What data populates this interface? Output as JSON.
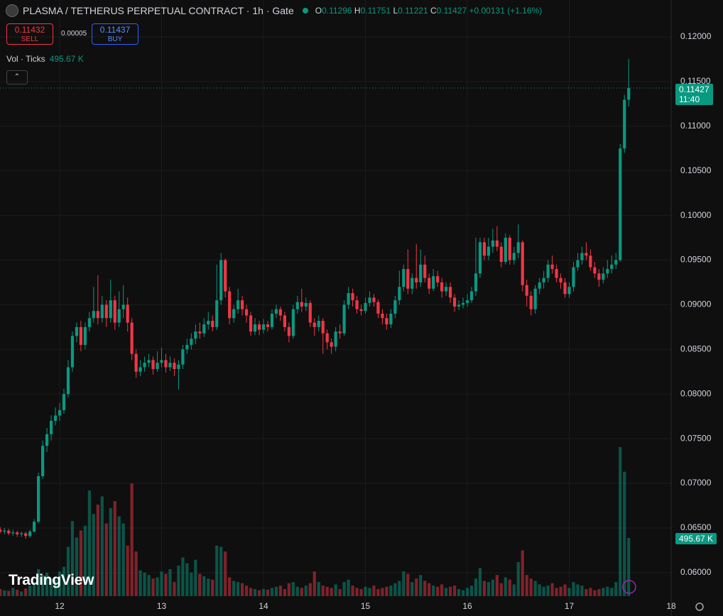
{
  "header": {
    "symbol": "PLASMA / TETHERUS PERPETUAL CONTRACT · 1h · Gate",
    "ohlc": [
      {
        "key": "O",
        "value": "0.11296"
      },
      {
        "key": "H",
        "value": "0.11751"
      },
      {
        "key": "L",
        "value": "0.11221"
      },
      {
        "key": "C",
        "value": "0.11427"
      }
    ],
    "change": "+0.00131 (+1.16%)"
  },
  "trade": {
    "sell": {
      "price": "0.11432",
      "label": "SELL"
    },
    "spread": "0.00005",
    "buy": {
      "price": "0.11437",
      "label": "BUY"
    }
  },
  "volume_indicator": {
    "name": "Vol · Ticks",
    "value": "495.67 K"
  },
  "badges": {
    "price": "0.11427",
    "countdown": "11:40",
    "volume": "495.67 K"
  },
  "logo": "TradingView",
  "chart_data": {
    "type": "candlestick",
    "up_color": "#089981",
    "down_color": "#f23645",
    "grid": true,
    "last_price": 0.11427,
    "xlim": [
      273.95,
      432
    ],
    "xticks": [
      {
        "value": 288,
        "label": "12"
      },
      {
        "value": 312,
        "label": "13"
      },
      {
        "value": 336,
        "label": "14"
      },
      {
        "value": 360,
        "label": "15"
      },
      {
        "value": 384,
        "label": "16"
      },
      {
        "value": 408,
        "label": "17"
      },
      {
        "value": 432,
        "label": "18"
      }
    ],
    "ylim": [
      0.05673,
      0.12413
    ],
    "yticks": [
      {
        "value": 0.12,
        "label": "0.12000"
      },
      {
        "value": 0.115,
        "label": "0.11500"
      },
      {
        "value": 0.11,
        "label": "0.11000"
      },
      {
        "value": 0.105,
        "label": "0.10500"
      },
      {
        "value": 0.1,
        "label": "0.10000"
      },
      {
        "value": 0.095,
        "label": "0.09500"
      },
      {
        "value": 0.09,
        "label": "0.09000"
      },
      {
        "value": 0.085,
        "label": "0.08500"
      },
      {
        "value": 0.08,
        "label": "0.08000"
      },
      {
        "value": 0.075,
        "label": "0.07500"
      },
      {
        "value": 0.07,
        "label": "0.07000"
      },
      {
        "value": 0.065,
        "label": "0.06500"
      },
      {
        "value": 0.06,
        "label": "0.06000"
      }
    ],
    "x": [
      274,
      275,
      276,
      277,
      278,
      279,
      280,
      281,
      282,
      283,
      284,
      285,
      286,
      287,
      288,
      289,
      290,
      291,
      292,
      293,
      294,
      295,
      296,
      297,
      298,
      299,
      300,
      301,
      302,
      303,
      304,
      305,
      306,
      307,
      308,
      309,
      310,
      311,
      312,
      313,
      314,
      315,
      316,
      317,
      318,
      319,
      320,
      321,
      322,
      323,
      324,
      325,
      326,
      327,
      328,
      329,
      330,
      331,
      332,
      333,
      334,
      335,
      336,
      337,
      338,
      339,
      340,
      341,
      342,
      343,
      344,
      345,
      346,
      347,
      348,
      349,
      350,
      351,
      352,
      353,
      354,
      355,
      356,
      357,
      358,
      359,
      360,
      361,
      362,
      363,
      364,
      365,
      366,
      367,
      368,
      369,
      370,
      371,
      372,
      373,
      374,
      375,
      376,
      377,
      378,
      379,
      380,
      381,
      382,
      383,
      384,
      385,
      386,
      387,
      388,
      389,
      390,
      391,
      392,
      393,
      394,
      395,
      396,
      397,
      398,
      399,
      400,
      401,
      402,
      403,
      404,
      405,
      406,
      407,
      408,
      409,
      410,
      411,
      412,
      413,
      414,
      415,
      416,
      417,
      418,
      419,
      420,
      421,
      422
    ],
    "open": [
      0.0648,
      0.0646,
      0.0647,
      0.0644,
      0.0645,
      0.0643,
      0.0644,
      0.0641,
      0.0646,
      0.0657,
      0.0708,
      0.0742,
      0.0755,
      0.077,
      0.0776,
      0.0782,
      0.08,
      0.083,
      0.0865,
      0.0875,
      0.0855,
      0.0875,
      0.0885,
      0.0893,
      0.0885,
      0.09,
      0.0885,
      0.0905,
      0.088,
      0.0895,
      0.09,
      0.088,
      0.0845,
      0.0825,
      0.083,
      0.0835,
      0.0838,
      0.0828,
      0.0835,
      0.0838,
      0.083,
      0.0835,
      0.0828,
      0.0833,
      0.085,
      0.0855,
      0.0862,
      0.087,
      0.0868,
      0.0878,
      0.0882,
      0.0875,
      0.0905,
      0.095,
      0.0915,
      0.0885,
      0.0895,
      0.0905,
      0.0895,
      0.0888,
      0.087,
      0.0878,
      0.0872,
      0.0878,
      0.0875,
      0.089,
      0.0895,
      0.0888,
      0.0875,
      0.0865,
      0.0895,
      0.0903,
      0.0898,
      0.0902,
      0.088,
      0.0875,
      0.0882,
      0.0868,
      0.0858,
      0.0853,
      0.087,
      0.0868,
      0.09,
      0.0913,
      0.0905,
      0.0895,
      0.0893,
      0.0902,
      0.0908,
      0.0903,
      0.089,
      0.0885,
      0.0878,
      0.089,
      0.0905,
      0.092,
      0.094,
      0.0918,
      0.093,
      0.0925,
      0.0945,
      0.093,
      0.0918,
      0.0932,
      0.0925,
      0.0915,
      0.092,
      0.0908,
      0.0898,
      0.09,
      0.0902,
      0.0905,
      0.0915,
      0.0935,
      0.097,
      0.0955,
      0.0965,
      0.0972,
      0.0965,
      0.0948,
      0.0975,
      0.095,
      0.0958,
      0.097,
      0.0922,
      0.091,
      0.0895,
      0.0918,
      0.0925,
      0.093,
      0.0945,
      0.094,
      0.093,
      0.0925,
      0.0912,
      0.092,
      0.0942,
      0.095,
      0.0958,
      0.0955,
      0.0942,
      0.0935,
      0.0928,
      0.0935,
      0.094,
      0.0945,
      0.095,
      0.1075,
      0.11296
    ],
    "high": [
      0.0651,
      0.065,
      0.0649,
      0.0648,
      0.0647,
      0.0646,
      0.0646,
      0.0648,
      0.066,
      0.0712,
      0.0748,
      0.0762,
      0.0776,
      0.0785,
      0.079,
      0.0806,
      0.0838,
      0.087,
      0.088,
      0.0882,
      0.088,
      0.0892,
      0.092,
      0.0933,
      0.091,
      0.0905,
      0.0928,
      0.091,
      0.0915,
      0.0922,
      0.0908,
      0.0885,
      0.085,
      0.0838,
      0.0842,
      0.0845,
      0.0842,
      0.0848,
      0.0852,
      0.0845,
      0.0842,
      0.084,
      0.0838,
      0.0855,
      0.0862,
      0.0868,
      0.0878,
      0.088,
      0.0885,
      0.0892,
      0.0888,
      0.0945,
      0.0958,
      0.0952,
      0.092,
      0.09,
      0.0918,
      0.091,
      0.09,
      0.0892,
      0.0885,
      0.0882,
      0.0884,
      0.0882,
      0.0895,
      0.09,
      0.0898,
      0.0892,
      0.088,
      0.09,
      0.091,
      0.0918,
      0.0908,
      0.0905,
      0.0885,
      0.0888,
      0.0885,
      0.0872,
      0.0862,
      0.0875,
      0.0878,
      0.0905,
      0.092,
      0.0918,
      0.091,
      0.09,
      0.0908,
      0.0915,
      0.0912,
      0.0906,
      0.0895,
      0.089,
      0.0895,
      0.091,
      0.0938,
      0.0945,
      0.0962,
      0.0935,
      0.0968,
      0.0962,
      0.0955,
      0.0935,
      0.094,
      0.0938,
      0.093,
      0.0925,
      0.0925,
      0.0912,
      0.0905,
      0.0908,
      0.0912,
      0.092,
      0.0975,
      0.0975,
      0.0975,
      0.0975,
      0.0985,
      0.0988,
      0.097,
      0.098,
      0.0978,
      0.0965,
      0.099,
      0.0972,
      0.0928,
      0.0915,
      0.0922,
      0.093,
      0.0938,
      0.095,
      0.0955,
      0.0945,
      0.0935,
      0.093,
      0.0925,
      0.0948,
      0.0958,
      0.0965,
      0.097,
      0.0962,
      0.0948,
      0.094,
      0.0942,
      0.095,
      0.0955,
      0.0958,
      0.108,
      0.1135,
      0.11751
    ],
    "low": [
      0.0644,
      0.0643,
      0.0642,
      0.0641,
      0.064,
      0.064,
      0.0638,
      0.0639,
      0.0645,
      0.0655,
      0.0705,
      0.0735,
      0.0748,
      0.0765,
      0.077,
      0.0778,
      0.0796,
      0.0825,
      0.0858,
      0.0848,
      0.085,
      0.087,
      0.088,
      0.0878,
      0.088,
      0.0875,
      0.088,
      0.0872,
      0.0875,
      0.0885,
      0.087,
      0.0838,
      0.0818,
      0.082,
      0.0825,
      0.083,
      0.0822,
      0.0825,
      0.083,
      0.0824,
      0.0826,
      0.082,
      0.0805,
      0.0828,
      0.0845,
      0.085,
      0.0856,
      0.0862,
      0.0864,
      0.0872,
      0.087,
      0.0872,
      0.09,
      0.0908,
      0.0878,
      0.088,
      0.089,
      0.0888,
      0.088,
      0.0865,
      0.0866,
      0.0866,
      0.0868,
      0.087,
      0.0872,
      0.0885,
      0.0882,
      0.087,
      0.0858,
      0.0862,
      0.089,
      0.0892,
      0.0893,
      0.0875,
      0.0865,
      0.087,
      0.0845,
      0.085,
      0.0845,
      0.0848,
      0.0862,
      0.0865,
      0.0895,
      0.0898,
      0.089,
      0.0888,
      0.089,
      0.0898,
      0.0898,
      0.0885,
      0.0878,
      0.0872,
      0.0874,
      0.0885,
      0.09,
      0.0915,
      0.0912,
      0.0912,
      0.0918,
      0.092,
      0.0925,
      0.0912,
      0.0915,
      0.092,
      0.0908,
      0.091,
      0.0902,
      0.0892,
      0.0894,
      0.0896,
      0.0898,
      0.0902,
      0.091,
      0.093,
      0.095,
      0.095,
      0.0958,
      0.096,
      0.0942,
      0.0945,
      0.0945,
      0.0945,
      0.0952,
      0.0915,
      0.0898,
      0.0888,
      0.089,
      0.0912,
      0.0918,
      0.0925,
      0.0935,
      0.0925,
      0.0918,
      0.0908,
      0.0908,
      0.0915,
      0.0938,
      0.0945,
      0.095,
      0.0938,
      0.093,
      0.092,
      0.0924,
      0.093,
      0.0935,
      0.094,
      0.0948,
      0.107,
      0.11221
    ],
    "close": [
      0.0646,
      0.0647,
      0.0644,
      0.0645,
      0.0643,
      0.0644,
      0.0641,
      0.0646,
      0.0657,
      0.0708,
      0.0742,
      0.0755,
      0.077,
      0.0776,
      0.0782,
      0.08,
      0.083,
      0.0865,
      0.0875,
      0.0855,
      0.0875,
      0.0885,
      0.0893,
      0.0885,
      0.09,
      0.0885,
      0.0905,
      0.088,
      0.0895,
      0.09,
      0.088,
      0.0845,
      0.0825,
      0.083,
      0.0835,
      0.0838,
      0.0828,
      0.0835,
      0.0838,
      0.083,
      0.0835,
      0.0828,
      0.0833,
      0.085,
      0.0855,
      0.0862,
      0.087,
      0.0868,
      0.0878,
      0.0882,
      0.0875,
      0.0905,
      0.095,
      0.0915,
      0.0885,
      0.0895,
      0.0905,
      0.0895,
      0.0888,
      0.087,
      0.0878,
      0.0872,
      0.0878,
      0.0875,
      0.089,
      0.0895,
      0.0888,
      0.0875,
      0.0865,
      0.0895,
      0.0903,
      0.0898,
      0.0902,
      0.088,
      0.0875,
      0.0882,
      0.0868,
      0.0858,
      0.0853,
      0.087,
      0.0868,
      0.09,
      0.0913,
      0.0905,
      0.0895,
      0.0893,
      0.0902,
      0.0908,
      0.0903,
      0.089,
      0.0885,
      0.0878,
      0.089,
      0.0905,
      0.092,
      0.094,
      0.0918,
      0.093,
      0.0925,
      0.0945,
      0.093,
      0.0918,
      0.0932,
      0.0925,
      0.0915,
      0.092,
      0.0908,
      0.0898,
      0.09,
      0.0902,
      0.0905,
      0.0915,
      0.0935,
      0.097,
      0.0955,
      0.0965,
      0.0972,
      0.0965,
      0.0948,
      0.0975,
      0.095,
      0.0958,
      0.097,
      0.0922,
      0.091,
      0.0895,
      0.0918,
      0.0925,
      0.093,
      0.0945,
      0.094,
      0.093,
      0.0925,
      0.0912,
      0.092,
      0.0942,
      0.095,
      0.0958,
      0.0955,
      0.0942,
      0.0935,
      0.0928,
      0.0935,
      0.094,
      0.0945,
      0.095,
      0.1075,
      0.11296,
      0.11427
    ],
    "volume": [
      60000,
      50000,
      45000,
      70000,
      55000,
      40000,
      65000,
      90000,
      120000,
      230000,
      180000,
      200000,
      150000,
      140000,
      210000,
      250000,
      420000,
      640000,
      500000,
      560000,
      600000,
      900000,
      700000,
      780000,
      850000,
      620000,
      750000,
      810000,
      680000,
      620000,
      430000,
      960000,
      380000,
      220000,
      200000,
      180000,
      150000,
      160000,
      210000,
      190000,
      230000,
      120000,
      260000,
      330000,
      280000,
      200000,
      310000,
      190000,
      170000,
      150000,
      140000,
      430000,
      420000,
      380000,
      160000,
      130000,
      120000,
      110000,
      90000,
      70000,
      60000,
      50000,
      60000,
      55000,
      70000,
      80000,
      90000,
      60000,
      110000,
      120000,
      80000,
      70000,
      90000,
      110000,
      210000,
      120000,
      90000,
      80000,
      70000,
      100000,
      60000,
      120000,
      140000,
      90000,
      70000,
      60000,
      80000,
      70000,
      90000,
      60000,
      70000,
      80000,
      90000,
      110000,
      130000,
      210000,
      190000,
      120000,
      150000,
      180000,
      130000,
      110000,
      90000,
      80000,
      100000,
      70000,
      80000,
      90000,
      60000,
      50000,
      70000,
      90000,
      150000,
      240000,
      130000,
      120000,
      140000,
      180000,
      110000,
      160000,
      140000,
      100000,
      290000,
      390000,
      180000,
      150000,
      130000,
      100000,
      80000,
      90000,
      110000,
      70000,
      80000,
      100000,
      70000,
      120000,
      100000,
      90000,
      60000,
      70000,
      50000,
      60000,
      70000,
      80000,
      70000,
      120000,
      1270000,
      1060000,
      495670
    ]
  }
}
